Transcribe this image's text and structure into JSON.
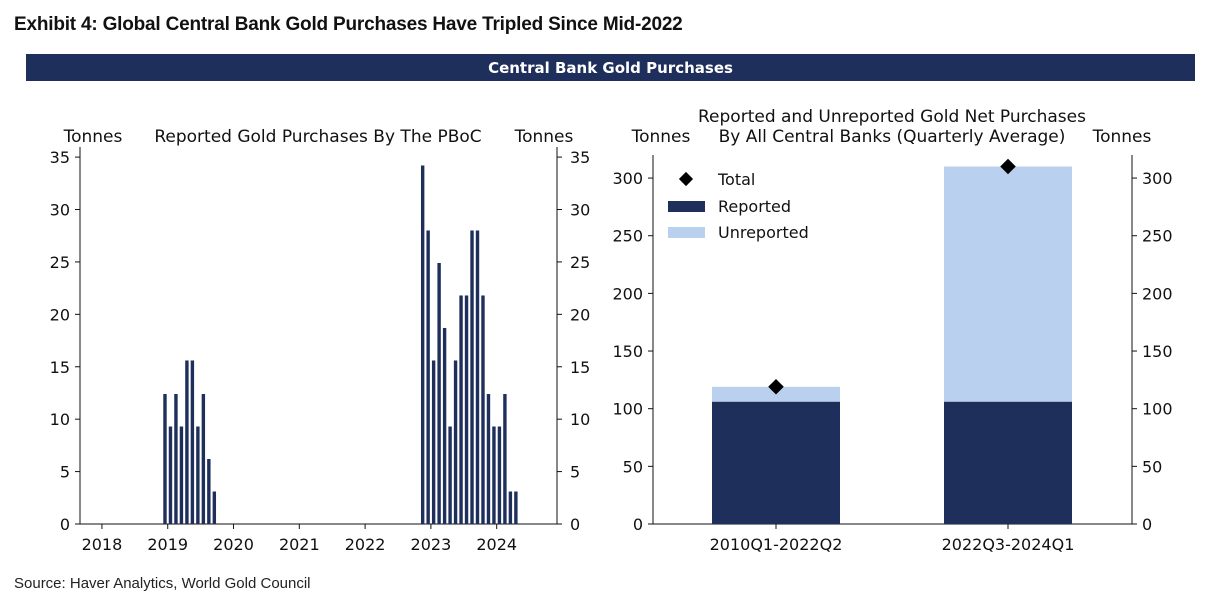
{
  "exhibit_title": "Exhibit 4: Global Central Bank Gold Purchases Have Tripled Since Mid-2022",
  "banner": "Central Bank Gold Purchases",
  "source": "Source: Haver Analytics, World Gold Council",
  "colors": {
    "navy": "#1f2f5c",
    "light_blue": "#b9d0ee",
    "total_marker": "#000000"
  },
  "chart_data": [
    {
      "type": "bar",
      "title": "Reported Gold Purchases By The PBoC",
      "ylabel_left": "Tonnes",
      "ylabel_right": "Tonnes",
      "xlim": [
        "2017-09",
        "2024-12"
      ],
      "ylim": [
        0,
        35
      ],
      "yticks": [
        0,
        5,
        10,
        15,
        20,
        25,
        30,
        35
      ],
      "xticks": [
        "2018",
        "2019",
        "2020",
        "2021",
        "2022",
        "2023",
        "2024"
      ],
      "grid": false,
      "series": [
        {
          "values": [
            {
              "x": "2018-12",
              "y": 12.4
            },
            {
              "x": "2019-01",
              "y": 9.3
            },
            {
              "x": "2019-02",
              "y": 12.4
            },
            {
              "x": "2019-03",
              "y": 9.3
            },
            {
              "x": "2019-04",
              "y": 15.6
            },
            {
              "x": "2019-05",
              "y": 15.6
            },
            {
              "x": "2019-06",
              "y": 9.3
            },
            {
              "x": "2019-07",
              "y": 12.4
            },
            {
              "x": "2019-08",
              "y": 6.2
            },
            {
              "x": "2019-09",
              "y": 3.1
            },
            {
              "x": "2022-11",
              "y": 34.2
            },
            {
              "x": "2022-12",
              "y": 28.0
            },
            {
              "x": "2023-01",
              "y": 15.6
            },
            {
              "x": "2023-02",
              "y": 24.9
            },
            {
              "x": "2023-03",
              "y": 18.7
            },
            {
              "x": "2023-04",
              "y": 9.3
            },
            {
              "x": "2023-05",
              "y": 15.6
            },
            {
              "x": "2023-06",
              "y": 21.8
            },
            {
              "x": "2023-07",
              "y": 21.8
            },
            {
              "x": "2023-08",
              "y": 28.0
            },
            {
              "x": "2023-09",
              "y": 28.0
            },
            {
              "x": "2023-10",
              "y": 21.8
            },
            {
              "x": "2023-11",
              "y": 12.4
            },
            {
              "x": "2023-12",
              "y": 9.3
            },
            {
              "x": "2024-01",
              "y": 9.3
            },
            {
              "x": "2024-02",
              "y": 12.4
            },
            {
              "x": "2024-03",
              "y": 3.1
            },
            {
              "x": "2024-04",
              "y": 3.1
            }
          ]
        }
      ]
    },
    {
      "type": "bar",
      "stacked": true,
      "title_line1": "Reported and Unreported Gold Net Purchases",
      "title_line2": "By All Central Banks (Quarterly Average)",
      "ylabel_left": "Tonnes",
      "ylabel_right": "Tonnes",
      "ylim": [
        0,
        320
      ],
      "yticks": [
        0,
        50,
        100,
        150,
        200,
        250,
        300
      ],
      "grid": false,
      "legend_position": "top-left",
      "categories": [
        "2010Q1-2022Q2",
        "2022Q3-2024Q1"
      ],
      "series": [
        {
          "name": "Reported",
          "values": [
            106,
            106
          ]
        },
        {
          "name": "Unreported",
          "values": [
            13,
            204
          ]
        }
      ],
      "total": {
        "name": "Total",
        "values": [
          119,
          310
        ]
      }
    }
  ]
}
